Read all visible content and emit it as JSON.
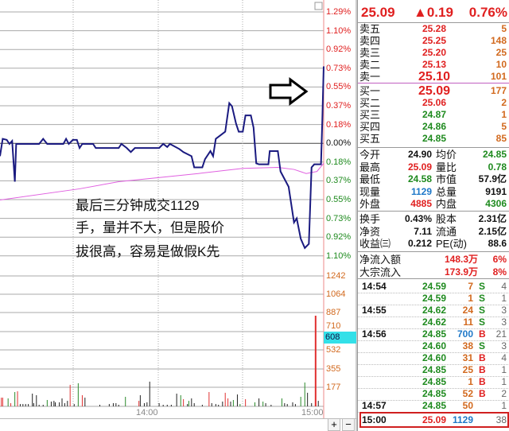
{
  "quote": {
    "price": "25.09",
    "change": "▲0.19",
    "change_pct": "0.76%"
  },
  "asks": [
    {
      "label": "卖五",
      "price": "25.28",
      "vol": "5"
    },
    {
      "label": "卖四",
      "price": "25.25",
      "vol": "148"
    },
    {
      "label": "卖三",
      "price": "25.20",
      "vol": "25"
    },
    {
      "label": "卖二",
      "price": "25.13",
      "vol": "10"
    },
    {
      "label": "卖一",
      "price": "25.10",
      "vol": "101"
    }
  ],
  "bids": [
    {
      "label": "买一",
      "price": "25.09",
      "vol": "177"
    },
    {
      "label": "买二",
      "price": "25.06",
      "vol": "2"
    },
    {
      "label": "买三",
      "price": "24.87",
      "vol": "1"
    },
    {
      "label": "买四",
      "price": "24.86",
      "vol": "5"
    },
    {
      "label": "买五",
      "price": "24.85",
      "vol": "85"
    }
  ],
  "stats": [
    {
      "l1": "今开",
      "v1": "24.90",
      "c1": "blk",
      "l2": "均价",
      "v2": "24.85",
      "c2": "grn"
    },
    {
      "l1": "最高",
      "v1": "25.09",
      "c1": "red",
      "l2": "量比",
      "v2": "0.78",
      "c2": "grn"
    },
    {
      "l1": "最低",
      "v1": "24.58",
      "c1": "grn",
      "l2": "市值",
      "v2": "57.9亿",
      "c2": "blk"
    },
    {
      "l1": "现量",
      "v1": "1129",
      "c1": "blu",
      "l2": "总量",
      "v2": "9191",
      "c2": "blk"
    },
    {
      "l1": "外盘",
      "v1": "4885",
      "c1": "red",
      "l2": "内盘",
      "v2": "4306",
      "c2": "grn"
    }
  ],
  "stats2": [
    {
      "l1": "换手",
      "v1": "0.43%",
      "l2": "股本",
      "v2": "2.31亿"
    },
    {
      "l1": "净资",
      "v1": "7.11",
      "l2": "流通",
      "v2": "2.15亿"
    },
    {
      "l1": "收益㈢",
      "v1": "0.212",
      "l2": "PE(动)",
      "v2": "88.6"
    }
  ],
  "flows": [
    {
      "label": "净流入额",
      "amount": "148.3万",
      "pct": "6%"
    },
    {
      "label": "大宗流入",
      "amount": "173.9万",
      "pct": "8%"
    }
  ],
  "ticks": [
    {
      "time": "14:54",
      "price": "24.59",
      "vol": "7",
      "side": "S",
      "n": "4"
    },
    {
      "time": "",
      "price": "24.59",
      "vol": "1",
      "side": "S",
      "n": "1"
    },
    {
      "time": "14:55",
      "price": "24.62",
      "vol": "24",
      "side": "S",
      "n": "3"
    },
    {
      "time": "",
      "price": "24.62",
      "vol": "11",
      "side": "S",
      "n": "3"
    },
    {
      "time": "14:56",
      "price": "24.85",
      "vol": "700",
      "side": "B",
      "n": "21"
    },
    {
      "time": "",
      "price": "24.60",
      "vol": "38",
      "side": "S",
      "n": "3"
    },
    {
      "time": "",
      "price": "24.60",
      "vol": "31",
      "side": "B",
      "n": "4"
    },
    {
      "time": "",
      "price": "24.85",
      "vol": "25",
      "side": "B",
      "n": "1"
    },
    {
      "time": "",
      "price": "24.85",
      "vol": "1",
      "side": "B",
      "n": "1"
    },
    {
      "time": "",
      "price": "24.85",
      "vol": "52",
      "side": "B",
      "n": "2"
    },
    {
      "time": "14:57",
      "price": "24.85",
      "vol": "50",
      "side": "",
      "n": "1"
    }
  ],
  "last_tick": {
    "time": "15:00",
    "price": "25.09",
    "vol": "1129",
    "n": "38"
  },
  "axis": {
    "pct_labels": [
      {
        "t": "1.29%",
        "c": "red"
      },
      {
        "t": "1.10%",
        "c": "red"
      },
      {
        "t": "0.92%",
        "c": "red"
      },
      {
        "t": "0.73%",
        "c": "red"
      },
      {
        "t": "0.55%",
        "c": "red"
      },
      {
        "t": "0.37%",
        "c": "red"
      },
      {
        "t": "0.18%",
        "c": "red"
      },
      {
        "t": "0.00%",
        "c": "blk"
      },
      {
        "t": "0.18%",
        "c": "grn"
      },
      {
        "t": "0.37%",
        "c": "grn"
      },
      {
        "t": "0.55%",
        "c": "grn"
      },
      {
        "t": "0.73%",
        "c": "grn"
      },
      {
        "t": "0.92%",
        "c": "grn"
      },
      {
        "t": "1.10%",
        "c": "grn"
      }
    ],
    "vol_labels": [
      "1242",
      "1064",
      "887",
      "710",
      "532",
      "355",
      "177"
    ],
    "vol_cursor": "608",
    "times": [
      "14:00",
      "15:00"
    ]
  },
  "annotation": [
    "最后三分钟成交1129",
    "手，量并不大，但是股价",
    "拔很高，容易是做假K先"
  ],
  "buttons": {
    "zoom_in": "+",
    "zoom_out": "−"
  },
  "colors": {
    "price_line": "#1a1a80",
    "avg_line": "#e060e0",
    "up": "#e02020",
    "down": "#1e8a1e",
    "cursor_box": "#33e0e8"
  },
  "price_series": [
    [
      0,
      -0.12
    ],
    [
      2,
      0.05
    ],
    [
      5,
      0.04
    ],
    [
      7,
      0
    ],
    [
      9,
      0.03
    ],
    [
      11,
      -0.37
    ],
    [
      12,
      0
    ],
    [
      29,
      0
    ],
    [
      32,
      0.05
    ],
    [
      35,
      0
    ],
    [
      47,
      0
    ],
    [
      49,
      0.05
    ],
    [
      51,
      0
    ],
    [
      54,
      0.04
    ],
    [
      57,
      0.04
    ],
    [
      59,
      -0.04
    ],
    [
      61,
      0
    ],
    [
      69,
      0
    ],
    [
      71,
      -0.04
    ],
    [
      88,
      -0.04
    ],
    [
      90,
      0
    ],
    [
      94,
      -0.04
    ],
    [
      97,
      -0.08
    ],
    [
      100,
      -0.04
    ],
    [
      118,
      -0.04
    ],
    [
      121,
      0
    ],
    [
      124,
      -0.03
    ],
    [
      126,
      0
    ],
    [
      133,
      -0.05
    ],
    [
      136,
      -0.08
    ],
    [
      142,
      -0.12
    ],
    [
      144,
      -0.23
    ],
    [
      150,
      -0.23
    ],
    [
      152,
      -0.15
    ],
    [
      156,
      -0.07
    ],
    [
      158,
      -0.12
    ],
    [
      160,
      0.05
    ],
    [
      164,
      0.09
    ],
    [
      167,
      0.12
    ],
    [
      170,
      0.4
    ],
    [
      172,
      0.37
    ],
    [
      175,
      0.2
    ],
    [
      177,
      0.12
    ],
    [
      180,
      0.12
    ],
    [
      182,
      0.28
    ],
    [
      186,
      0.28
    ],
    [
      188,
      0.16
    ],
    [
      190,
      -0.19
    ],
    [
      192,
      -0.2
    ],
    [
      199,
      -0.2
    ],
    [
      200,
      -0.07
    ],
    [
      206,
      -0.07
    ],
    [
      208,
      -0.27
    ],
    [
      214,
      -0.42
    ],
    [
      218,
      -0.77
    ],
    [
      220,
      -0.73
    ],
    [
      223,
      -0.93
    ],
    [
      226,
      -1.02
    ],
    [
      229,
      -0.98
    ],
    [
      231,
      -0.23
    ],
    [
      233,
      -0.2
    ],
    [
      238,
      -0.2
    ],
    [
      239,
      0.24
    ],
    [
      240,
      0.76
    ]
  ],
  "avg_series": [
    [
      0,
      -0.55
    ],
    [
      59,
      -0.44
    ],
    [
      88,
      -0.37
    ],
    [
      147,
      -0.29
    ],
    [
      180,
      -0.24
    ],
    [
      206,
      -0.23
    ],
    [
      218,
      -0.25
    ],
    [
      227,
      -0.29
    ],
    [
      235,
      -0.27
    ],
    [
      240,
      -0.19
    ]
  ],
  "volume_series": [
    [
      1,
      82,
      "r"
    ],
    [
      2,
      82,
      "r"
    ],
    [
      6,
      75,
      "g"
    ],
    [
      8,
      30,
      "r"
    ],
    [
      11,
      135,
      "g"
    ],
    [
      13,
      142,
      "r"
    ],
    [
      15,
      22,
      "k"
    ],
    [
      17,
      22,
      "k"
    ],
    [
      19,
      22,
      "k"
    ],
    [
      21,
      22,
      "k"
    ],
    [
      24,
      120,
      "k"
    ],
    [
      25,
      30,
      "k"
    ],
    [
      27,
      105,
      "k"
    ],
    [
      29,
      15,
      "k"
    ],
    [
      32,
      15,
      "k"
    ],
    [
      35,
      60,
      "g"
    ],
    [
      38,
      45,
      "k"
    ],
    [
      40,
      52,
      "k"
    ],
    [
      41,
      38,
      "k"
    ],
    [
      44,
      38,
      "k"
    ],
    [
      46,
      75,
      "k"
    ],
    [
      48,
      30,
      "k"
    ],
    [
      50,
      52,
      "k"
    ],
    [
      52,
      203,
      "r"
    ],
    [
      55,
      22,
      "k"
    ],
    [
      58,
      218,
      "g"
    ],
    [
      61,
      105,
      "r"
    ],
    [
      63,
      82,
      "k"
    ],
    [
      74,
      15,
      "k"
    ],
    [
      81,
      22,
      "k"
    ],
    [
      84,
      30,
      "k"
    ],
    [
      86,
      30,
      "k"
    ],
    [
      88,
      15,
      "k"
    ],
    [
      93,
      90,
      "g"
    ],
    [
      103,
      52,
      "r"
    ],
    [
      104,
      105,
      "k"
    ],
    [
      107,
      30,
      "k"
    ],
    [
      109,
      38,
      "k"
    ],
    [
      111,
      233,
      "k"
    ],
    [
      118,
      30,
      "k"
    ],
    [
      121,
      15,
      "k"
    ],
    [
      124,
      15,
      "k"
    ],
    [
      127,
      15,
      "k"
    ],
    [
      131,
      120,
      "k"
    ],
    [
      134,
      105,
      "g"
    ],
    [
      136,
      68,
      "r"
    ],
    [
      139,
      22,
      "k"
    ],
    [
      140,
      52,
      "g"
    ],
    [
      142,
      75,
      "k"
    ],
    [
      144,
      30,
      "k"
    ],
    [
      150,
      15,
      "k"
    ],
    [
      155,
      135,
      "r"
    ],
    [
      157,
      30,
      "k"
    ],
    [
      160,
      22,
      "k"
    ],
    [
      162,
      15,
      "k"
    ],
    [
      165,
      45,
      "k"
    ],
    [
      167,
      128,
      "r"
    ],
    [
      169,
      75,
      "r"
    ],
    [
      171,
      45,
      "k"
    ],
    [
      173,
      60,
      "g"
    ],
    [
      176,
      112,
      "k"
    ],
    [
      178,
      22,
      "g"
    ],
    [
      182,
      68,
      "r"
    ],
    [
      189,
      38,
      "g"
    ],
    [
      192,
      75,
      "k"
    ],
    [
      195,
      45,
      "g"
    ],
    [
      197,
      30,
      "k"
    ],
    [
      201,
      15,
      "k"
    ],
    [
      209,
      75,
      "g"
    ],
    [
      211,
      30,
      "k"
    ],
    [
      213,
      22,
      "k"
    ],
    [
      217,
      38,
      "k"
    ],
    [
      219,
      22,
      "k"
    ],
    [
      223,
      90,
      "g"
    ],
    [
      226,
      225,
      "g"
    ],
    [
      228,
      128,
      "k"
    ],
    [
      231,
      30,
      "k"
    ],
    [
      234,
      855,
      "r"
    ],
    [
      236,
      52,
      "k"
    ]
  ]
}
